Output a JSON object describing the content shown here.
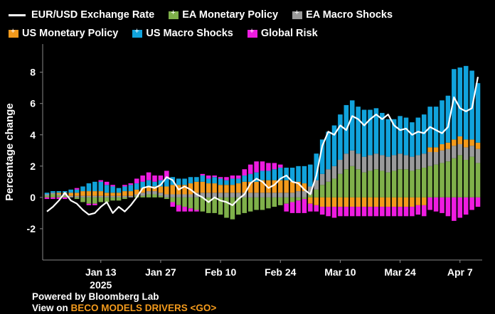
{
  "legend": {
    "rate_label": "EUR/USD Exchange Rate",
    "ea_monetary_label": "EA Monetary Policy",
    "ea_macro_label": "EA Macro Shocks",
    "us_monetary_label": "US Monetary Policy",
    "us_macro_label": "US Macro Shocks",
    "global_risk_label": "Global Risk"
  },
  "colors": {
    "ea_monetary": "#7fb04a",
    "ea_macro": "#9a9a9a",
    "us_monetary": "#f39a1c",
    "us_macro": "#11a3dc",
    "global_risk": "#ee1ce0",
    "rate_line": "#ffffff"
  },
  "footer": {
    "powered": "Powered by Bloomberg Lab",
    "view_prefix": "View on ",
    "view_link": "BECO MODELS DRIVERS <GO>"
  },
  "chart_data": {
    "type": "bar",
    "stacked": true,
    "ylabel": "Percentage change",
    "ylim": [
      -4,
      9.8
    ],
    "yticks": [
      -2,
      0,
      2,
      4,
      6,
      8
    ],
    "grid": false,
    "legend_position": "top",
    "x_ticks": [
      {
        "label": "Jan 13",
        "sub": "2025",
        "index": 9
      },
      {
        "label": "Jan 27",
        "index": 19
      },
      {
        "label": "Feb 10",
        "index": 29
      },
      {
        "label": "Feb 24",
        "index": 39
      },
      {
        "label": "Mar 10",
        "index": 49
      },
      {
        "label": "Mar 24",
        "index": 59
      },
      {
        "label": "Apr 7",
        "index": 69
      }
    ],
    "series": [
      {
        "name": "EA Monetary Policy",
        "key": "ea_monetary",
        "values": [
          0.1,
          0.2,
          0.1,
          0.1,
          0.0,
          -0.1,
          -0.3,
          -0.4,
          -0.4,
          -0.3,
          -0.3,
          -0.2,
          -0.2,
          -0.1,
          0.0,
          0.1,
          0.1,
          0.2,
          0.2,
          0.1,
          -0.1,
          -0.3,
          -0.5,
          -0.6,
          -0.7,
          -0.8,
          -0.9,
          -1.0,
          -1.0,
          -1.1,
          -1.3,
          -1.4,
          -1.1,
          -1.0,
          -0.9,
          -0.8,
          -0.8,
          -0.7,
          -0.6,
          -0.5,
          -0.4,
          -0.3,
          -0.2,
          -0.1,
          0.2,
          0.5,
          0.8,
          1.0,
          1.2,
          1.5,
          1.8,
          2.0,
          1.8,
          1.6,
          1.7,
          1.8,
          1.7,
          1.6,
          1.7,
          1.8,
          1.8,
          1.7,
          1.8,
          1.9,
          2.0,
          2.1,
          2.2,
          2.3,
          2.5,
          2.7,
          2.4,
          2.6,
          2.2
        ]
      },
      {
        "name": "EA Macro Shocks",
        "key": "ea_macro",
        "values": [
          0.1,
          0.1,
          0.1,
          0.1,
          0.1,
          0.1,
          0.1,
          0.1,
          0.1,
          0.1,
          0.1,
          0.1,
          0.1,
          0.1,
          0.1,
          0.1,
          0.2,
          0.2,
          0.2,
          0.2,
          0.2,
          0.2,
          0.2,
          0.2,
          0.2,
          0.3,
          0.3,
          0.3,
          0.3,
          0.3,
          0.3,
          0.3,
          0.3,
          0.3,
          0.3,
          0.3,
          0.3,
          0.3,
          0.3,
          0.3,
          0.3,
          0.3,
          0.4,
          0.4,
          0.5,
          0.6,
          0.7,
          0.8,
          0.8,
          0.9,
          1.0,
          1.0,
          1.0,
          1.0,
          1.0,
          1.0,
          1.0,
          1.0,
          1.0,
          1.0,
          0.9,
          0.9,
          0.9,
          0.9,
          0.9,
          0.8,
          0.8,
          0.8,
          0.8,
          0.7,
          0.8,
          0.7,
          0.9
        ]
      },
      {
        "name": "US Monetary Policy",
        "key": "us_monetary",
        "values": [
          0.0,
          0.0,
          0.1,
          0.1,
          0.2,
          0.2,
          0.3,
          0.3,
          0.3,
          0.3,
          0.2,
          0.2,
          0.2,
          0.3,
          0.3,
          0.3,
          0.3,
          0.3,
          0.3,
          0.4,
          0.5,
          0.6,
          0.6,
          0.6,
          0.7,
          0.7,
          0.7,
          0.6,
          0.6,
          0.5,
          0.5,
          0.5,
          0.6,
          0.7,
          0.7,
          0.7,
          0.8,
          0.8,
          0.8,
          0.8,
          0.8,
          0.7,
          0.6,
          0.5,
          -0.4,
          -0.5,
          -0.6,
          -0.6,
          -0.6,
          -0.6,
          -0.6,
          -0.6,
          -0.6,
          -0.6,
          -0.6,
          -0.6,
          -0.6,
          -0.6,
          -0.6,
          -0.6,
          -0.6,
          -0.6,
          -0.5,
          -0.5,
          0.3,
          0.3,
          0.4,
          0.4,
          0.4,
          0.5,
          0.5,
          0.4,
          0.4
        ]
      },
      {
        "name": "US Macro Shocks",
        "key": "us_macro",
        "values": [
          0.1,
          0.1,
          0.1,
          0.1,
          0.2,
          0.2,
          0.3,
          0.5,
          0.6,
          0.6,
          0.5,
          0.4,
          0.3,
          0.3,
          0.4,
          0.4,
          0.4,
          0.4,
          0.3,
          0.4,
          0.5,
          0.5,
          0.4,
          0.4,
          0.4,
          0.3,
          0.4,
          0.3,
          0.4,
          0.4,
          0.3,
          0.4,
          0.3,
          0.4,
          0.5,
          0.6,
          0.6,
          0.6,
          0.7,
          0.8,
          0.8,
          0.9,
          1.0,
          1.1,
          1.4,
          1.7,
          2.2,
          2.4,
          2.6,
          2.9,
          3.1,
          3.2,
          3.0,
          3.0,
          2.9,
          2.9,
          2.7,
          2.4,
          2.3,
          2.4,
          2.4,
          2.2,
          2.4,
          2.5,
          2.6,
          2.6,
          2.8,
          3.0,
          4.5,
          4.4,
          4.7,
          4.4,
          3.8
        ]
      },
      {
        "name": "Global Risk",
        "key": "global_risk",
        "values": [
          -0.1,
          -0.1,
          -0.1,
          -0.1,
          0.0,
          0.1,
          0.0,
          -0.1,
          -0.1,
          0.1,
          0.2,
          0.1,
          0.0,
          0.1,
          0.1,
          0.3,
          0.4,
          0.5,
          0.4,
          0.3,
          0.5,
          -0.3,
          -0.4,
          -0.3,
          -0.2,
          -0.1,
          0.1,
          0.2,
          0.1,
          0.1,
          0.2,
          0.2,
          0.2,
          0.4,
          0.6,
          0.7,
          0.6,
          0.5,
          0.4,
          0.2,
          -0.5,
          -0.7,
          -0.8,
          -0.9,
          -0.5,
          -0.4,
          -0.5,
          -0.6,
          -0.7,
          -0.6,
          -0.6,
          -0.6,
          -0.6,
          -0.6,
          -0.6,
          -0.6,
          -0.6,
          -0.6,
          -0.6,
          -0.6,
          -0.6,
          -0.6,
          -0.6,
          -0.7,
          -0.8,
          -0.9,
          -1.0,
          -1.2,
          -1.5,
          -1.3,
          -1.1,
          -0.8,
          -0.6
        ]
      },
      {
        "name": "EUR/USD Exchange Rate",
        "key": "rate_line",
        "type": "line",
        "values": [
          -0.9,
          -0.6,
          -0.2,
          0.3,
          -0.2,
          -0.4,
          -0.8,
          -1.1,
          -1.0,
          -0.6,
          -0.3,
          -1.0,
          -0.6,
          -0.9,
          -0.5,
          0.0,
          0.6,
          0.7,
          0.6,
          0.8,
          1.3,
          1.1,
          0.5,
          0.7,
          0.5,
          0.2,
          0.0,
          -0.3,
          0.0,
          -0.2,
          -0.3,
          -0.5,
          -0.1,
          0.2,
          0.9,
          1.2,
          1.0,
          0.6,
          0.8,
          1.2,
          1.4,
          1.0,
          0.9,
          0.5,
          0.2,
          1.4,
          3.3,
          4.2,
          4.0,
          4.6,
          4.3,
          5.2,
          5.0,
          4.6,
          5.0,
          5.3,
          5.0,
          5.3,
          4.6,
          4.3,
          4.4,
          4.0,
          4.2,
          4.1,
          4.5,
          4.3,
          4.1,
          4.5,
          6.4,
          5.7,
          5.5,
          5.7,
          7.7
        ]
      }
    ]
  }
}
